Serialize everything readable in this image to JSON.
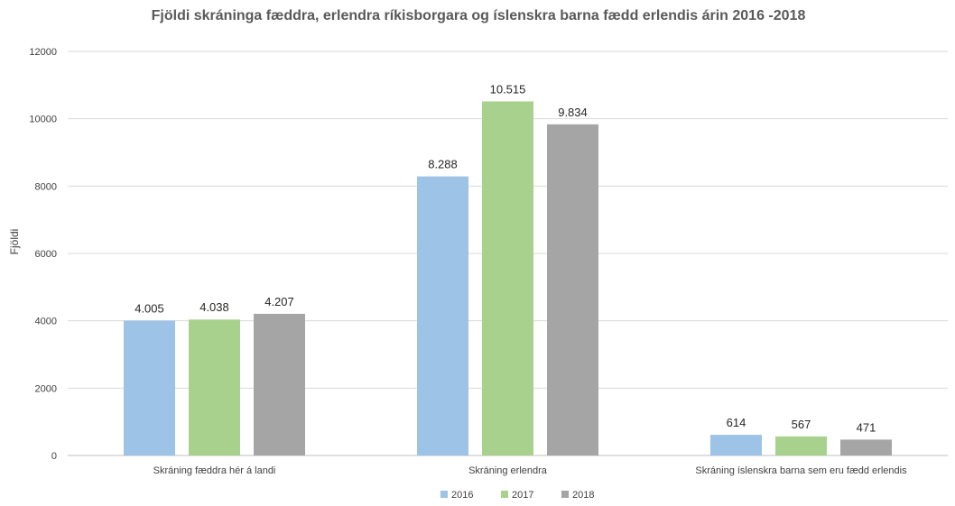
{
  "chart_data": {
    "type": "bar",
    "title": "Fjöldi skráninga fæddra,  erlendra ríkisborgara og íslenskra barna fædd erlendis árin 2016 -2018",
    "xlabel": "",
    "ylabel": "Fjöldi",
    "ylim": [
      0,
      12000
    ],
    "yticks": [
      0,
      2000,
      4000,
      6000,
      8000,
      10000,
      12000
    ],
    "ytick_labels": [
      "0",
      "2000",
      "4000",
      "6000",
      "8000",
      "10000",
      "12000"
    ],
    "grid": true,
    "legend_position": "bottom",
    "categories": [
      "Skráning fæddra hér á landi",
      "Skráning erlendra",
      "Skráning íslenskra barna sem eru fædd erlendis"
    ],
    "series": [
      {
        "name": "2016",
        "color": "#9dc3e6",
        "values": [
          4005,
          8288,
          614
        ],
        "labels": [
          "4.005",
          "8.288",
          "614"
        ]
      },
      {
        "name": "2017",
        "color": "#a9d18e",
        "values": [
          4038,
          10515,
          567
        ],
        "labels": [
          "4.038",
          "10.515",
          "567"
        ]
      },
      {
        "name": "2018",
        "color": "#a5a5a5",
        "values": [
          4207,
          9834,
          471
        ],
        "labels": [
          "4.207",
          "9.834",
          "471"
        ]
      }
    ]
  }
}
